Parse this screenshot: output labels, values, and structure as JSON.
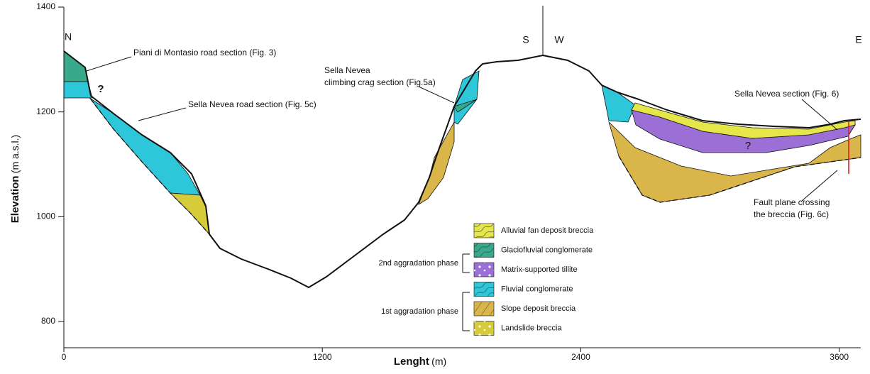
{
  "axes": {
    "x_label": "Lenght",
    "x_unit": "(m)",
    "y_label": "Elevation",
    "y_unit": "(m a.s.l.)",
    "xlim": [
      0,
      3700
    ],
    "ylim": [
      750,
      1400
    ],
    "xticks": [
      0,
      1200,
      2400,
      3600
    ],
    "yticks": [
      800,
      1000,
      1200,
      1400
    ]
  },
  "directions": [
    "N",
    "S",
    "W",
    "E"
  ],
  "annotations": [
    {
      "lines": [
        "Piani di Montasio road section (Fig. 3)"
      ]
    },
    {
      "lines": [
        "Sella Nevea road section (Fig. 5c)"
      ]
    },
    {
      "lines": [
        "Sella Nevea",
        "climbing crag section (Fig.5a)"
      ]
    },
    {
      "lines": [
        "Sella Nevea section (Fig. 6)"
      ]
    },
    {
      "lines": [
        "Fault plane crossing",
        "the breccia (Fig. 6c)"
      ]
    }
  ],
  "question_marks": [
    "?",
    "?"
  ],
  "legend": {
    "groups": [
      "2nd aggradation phase",
      "1st aggradation phase"
    ],
    "items": [
      {
        "label": "Alluvial fan deposit breccia",
        "color": "#e6e64a"
      },
      {
        "label": "Glaciofluvial conglomerate",
        "color": "#38a98a"
      },
      {
        "label": "Matrix-supported tillite",
        "color": "#9b6fd6"
      },
      {
        "label": "Fluvial conglomerate",
        "color": "#2ec7d9"
      },
      {
        "label": "Slope deposit breccia",
        "color": "#d9b54a"
      },
      {
        "label": "Landslide breccia",
        "color": "#d6cc3a"
      }
    ]
  }
}
